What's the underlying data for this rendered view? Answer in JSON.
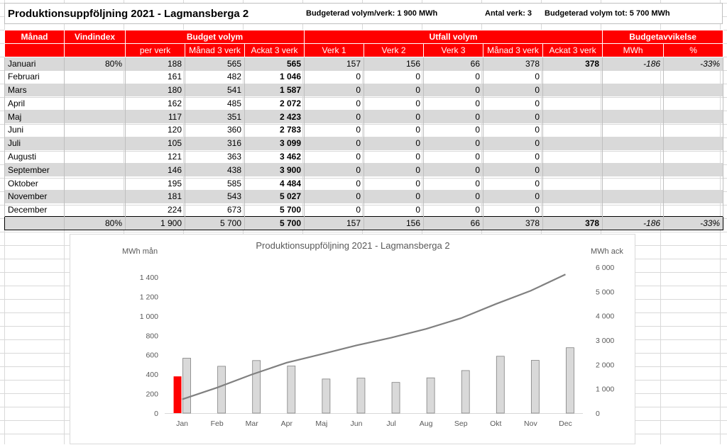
{
  "header": {
    "title": "Produktionsuppföljning 2021 - Lagmansberga 2",
    "budget_per_verk": "Budgeterad volym/verk: 1 900 MWh",
    "antal_verk": "Antal verk: 3",
    "budget_tot": "Budgeterad volym tot: 5 700 MWh"
  },
  "table": {
    "group_headers": {
      "month": "Månad",
      "vindindex": "Vindindex",
      "budget": "Budget volym",
      "outcome": "Utfall volym",
      "deviation": "Budgetavvikelse"
    },
    "sub_headers": {
      "per_verk": "per verk",
      "manad3_b": "Månad 3 verk",
      "ackat3_b": "Ackat 3 verk",
      "verk1": "Verk 1",
      "verk2": "Verk 2",
      "verk3": "Verk 3",
      "manad3_u": "Månad 3 verk",
      "ackat3_u": "Ackat 3 verk",
      "mwh": "MWh",
      "pct": "%"
    },
    "rows": [
      {
        "month": "Januari",
        "vind": "80%",
        "per": "188",
        "man": "565",
        "ack": "565",
        "v1": "157",
        "v2": "156",
        "v3": "66",
        "uman": "378",
        "uack": "378",
        "dmwh": "-186",
        "dpct": "-33%"
      },
      {
        "month": "Februari",
        "vind": "",
        "per": "161",
        "man": "482",
        "ack": "1 046",
        "v1": "0",
        "v2": "0",
        "v3": "0",
        "uman": "0",
        "uack": "",
        "dmwh": "",
        "dpct": ""
      },
      {
        "month": "Mars",
        "vind": "",
        "per": "180",
        "man": "541",
        "ack": "1 587",
        "v1": "0",
        "v2": "0",
        "v3": "0",
        "uman": "0",
        "uack": "",
        "dmwh": "",
        "dpct": ""
      },
      {
        "month": "April",
        "vind": "",
        "per": "162",
        "man": "485",
        "ack": "2 072",
        "v1": "0",
        "v2": "0",
        "v3": "0",
        "uman": "0",
        "uack": "",
        "dmwh": "",
        "dpct": ""
      },
      {
        "month": "Maj",
        "vind": "",
        "per": "117",
        "man": "351",
        "ack": "2 423",
        "v1": "0",
        "v2": "0",
        "v3": "0",
        "uman": "0",
        "uack": "",
        "dmwh": "",
        "dpct": ""
      },
      {
        "month": "Juni",
        "vind": "",
        "per": "120",
        "man": "360",
        "ack": "2 783",
        "v1": "0",
        "v2": "0",
        "v3": "0",
        "uman": "0",
        "uack": "",
        "dmwh": "",
        "dpct": ""
      },
      {
        "month": "Juli",
        "vind": "",
        "per": "105",
        "man": "316",
        "ack": "3 099",
        "v1": "0",
        "v2": "0",
        "v3": "0",
        "uman": "0",
        "uack": "",
        "dmwh": "",
        "dpct": ""
      },
      {
        "month": "Augusti",
        "vind": "",
        "per": "121",
        "man": "363",
        "ack": "3 462",
        "v1": "0",
        "v2": "0",
        "v3": "0",
        "uman": "0",
        "uack": "",
        "dmwh": "",
        "dpct": ""
      },
      {
        "month": "September",
        "vind": "",
        "per": "146",
        "man": "438",
        "ack": "3 900",
        "v1": "0",
        "v2": "0",
        "v3": "0",
        "uman": "0",
        "uack": "",
        "dmwh": "",
        "dpct": ""
      },
      {
        "month": "Oktober",
        "vind": "",
        "per": "195",
        "man": "585",
        "ack": "4 484",
        "v1": "0",
        "v2": "0",
        "v3": "0",
        "uman": "0",
        "uack": "",
        "dmwh": "",
        "dpct": ""
      },
      {
        "month": "November",
        "vind": "",
        "per": "181",
        "man": "543",
        "ack": "5 027",
        "v1": "0",
        "v2": "0",
        "v3": "0",
        "uman": "0",
        "uack": "",
        "dmwh": "",
        "dpct": ""
      },
      {
        "month": "December",
        "vind": "",
        "per": "224",
        "man": "673",
        "ack": "5 700",
        "v1": "0",
        "v2": "0",
        "v3": "0",
        "uman": "0",
        "uack": "",
        "dmwh": "",
        "dpct": ""
      }
    ],
    "total": {
      "month": "",
      "vind": "80%",
      "per": "1 900",
      "man": "5 700",
      "ack": "5 700",
      "v1": "157",
      "v2": "156",
      "v3": "66",
      "uman": "378",
      "uack": "378",
      "dmwh": "-186",
      "dpct": "-33%"
    }
  },
  "colors": {
    "header_red": "#ff0000",
    "row_shade": "#d9d9d9",
    "actual_bar": "#ff0000",
    "budget_bar": "#d9d9d9",
    "line": "#808080"
  },
  "chart_data": {
    "type": "bar",
    "title": "Produktionsuppföljning 2021 - Lagmansberga 2",
    "ylabel_left": "MWh mån",
    "ylabel_right": "MWh ack",
    "categories": [
      "Jan",
      "Feb",
      "Mar",
      "Apr",
      "Maj",
      "Jun",
      "Jul",
      "Aug",
      "Sep",
      "Okt",
      "Nov",
      "Dec"
    ],
    "ylim_left": [
      0,
      1400
    ],
    "yticks_left": [
      0,
      200,
      400,
      600,
      800,
      1000,
      1200,
      1400
    ],
    "ytick_labels_left": [
      "0",
      "200",
      "400",
      "600",
      "800",
      "1 000",
      "1 200",
      "1 400"
    ],
    "ylim_right": [
      0,
      6000
    ],
    "yticks_right": [
      0,
      1000,
      2000,
      3000,
      4000,
      5000,
      6000
    ],
    "ytick_labels_right": [
      "0",
      "1 000",
      "2 000",
      "3 000",
      "4 000",
      "5 000",
      "6 000"
    ],
    "series": [
      {
        "kind": "bar",
        "axis": "left",
        "values": [
          378,
          0,
          0,
          0,
          0,
          0,
          0,
          0,
          0,
          0,
          0,
          0
        ],
        "color": "#ff0000"
      },
      {
        "kind": "bar",
        "axis": "left",
        "values": [
          565,
          482,
          541,
          485,
          351,
          360,
          316,
          363,
          438,
          585,
          543,
          673
        ],
        "color": "#d9d9d9"
      },
      {
        "kind": "line",
        "axis": "right",
        "values": [
          565,
          1046,
          1587,
          2072,
          2423,
          2783,
          3099,
          3462,
          3900,
          4484,
          5027,
          5700
        ],
        "color": "#808080"
      }
    ],
    "grid": false,
    "legend": "none"
  }
}
